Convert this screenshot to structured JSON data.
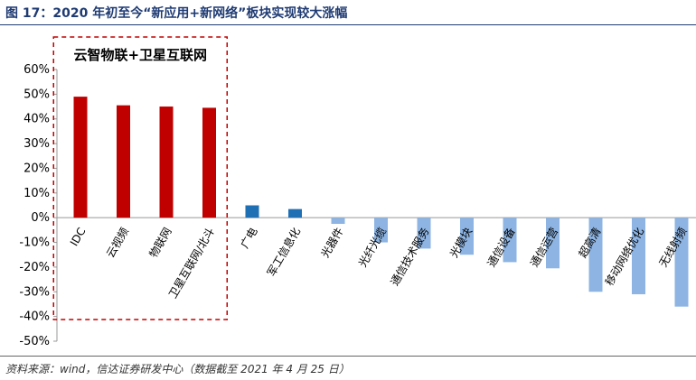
{
  "figure": {
    "title": "图 17：2020 年初至今“新应用+新网络”板块实现较大涨幅",
    "source": "资料来源：wind，信达证券研发中心（数据截至 2021 年 4 月 25 日）"
  },
  "chart_data": {
    "type": "bar",
    "title": "",
    "xlabel": "",
    "ylabel": "",
    "ylim": [
      -0.5,
      0.6
    ],
    "yticks": [
      "60%",
      "50%",
      "40%",
      "30%",
      "20%",
      "10%",
      "0%",
      "-10%",
      "-20%",
      "-30%",
      "-40%",
      "-50%"
    ],
    "grid": false,
    "legend": "none",
    "categories": [
      "IDC",
      "云视频",
      "物联网",
      "卫星互联网/北斗",
      "广电",
      "军工信息化",
      "光器件",
      "光纤光缆",
      "通信技术服务",
      "光模块",
      "通信设备",
      "通信运营",
      "超高清",
      "移动网络优化",
      "无线射频"
    ],
    "values": [
      0.49,
      0.455,
      0.45,
      0.445,
      0.05,
      0.035,
      -0.025,
      -0.1,
      -0.125,
      -0.15,
      -0.18,
      -0.205,
      -0.3,
      -0.31,
      -0.36
    ],
    "colors": [
      "#c00000",
      "#c00000",
      "#c00000",
      "#c00000",
      "#1f6fb5",
      "#1f6fb5",
      "#8db4e2",
      "#8db4e2",
      "#8db4e2",
      "#8db4e2",
      "#8db4e2",
      "#8db4e2",
      "#8db4e2",
      "#8db4e2",
      "#8db4e2"
    ],
    "highlight": {
      "label": "云智物联+卫星互联网",
      "color": "#c00000",
      "category_range": [
        0,
        3
      ]
    }
  }
}
